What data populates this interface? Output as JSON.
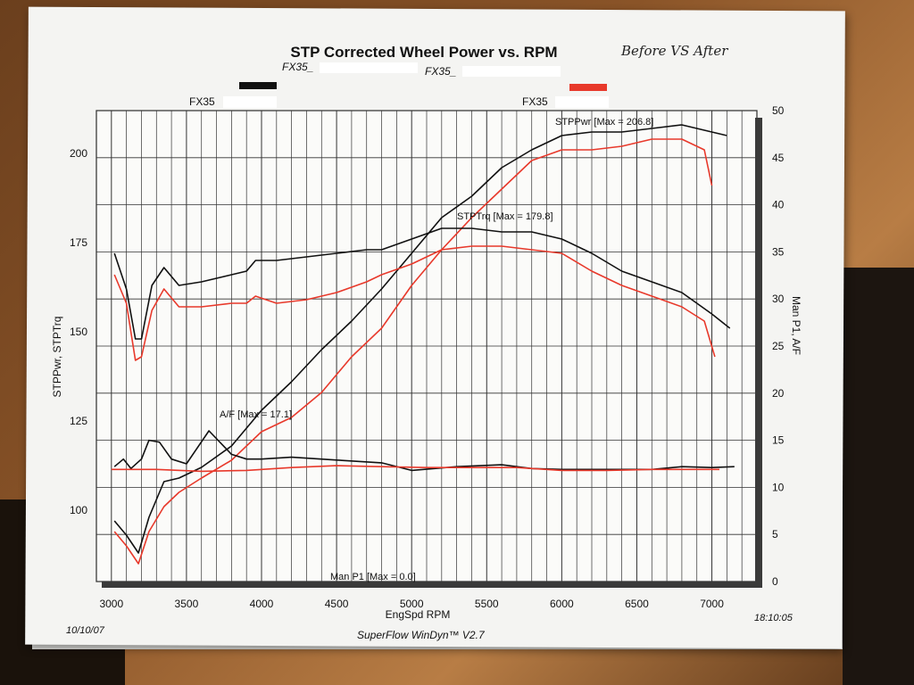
{
  "chart_data": {
    "type": "line",
    "title": "STP Corrected Wheel Power vs. RPM",
    "handwritten_note": "Before VS After",
    "legend": {
      "left_label": "FX35_",
      "right_label": "FX35_",
      "left_color": "#111111",
      "right_color": "#e8392b"
    },
    "run_labels": {
      "left": "FX35",
      "right": "FX35"
    },
    "xlabel": "EngSpd  RPM",
    "ylabel_left": "STPPwr, STPTrq",
    "ylabel_right": "Man P1, A/F",
    "xlim": [
      2900,
      7300
    ],
    "ylim_left": [
      80,
      212
    ],
    "ylim_right": [
      0,
      50
    ],
    "x_ticks": [
      "3000",
      "3500",
      "4000",
      "4500",
      "5000",
      "5500",
      "6000",
      "6500",
      "7000"
    ],
    "y_ticks_left": [
      "100",
      "125",
      "150",
      "175",
      "200"
    ],
    "y_ticks_right": [
      "0",
      "5",
      "10",
      "15",
      "20",
      "25",
      "30",
      "35",
      "40",
      "45",
      "50"
    ],
    "annotations": {
      "pwr": "STPPwr [Max = 206.8]",
      "trq": "STPTrq [Max = 179.8]",
      "af": "A/F   [Max = 17.1]",
      "manp": "Man P1 [Max = 0.0]"
    },
    "date": "10/10/07",
    "time": "18:10:05",
    "software": "SuperFlow WinDyn™ V2.7",
    "series": [
      {
        "name": "STPPwr",
        "color": "#111111",
        "axis": "left",
        "x": [
          3020,
          3100,
          3180,
          3250,
          3350,
          3450,
          3600,
          3800,
          4000,
          4200,
          4400,
          4600,
          4800,
          5000,
          5200,
          5400,
          5600,
          5800,
          6000,
          6200,
          6400,
          6600,
          6800,
          7000,
          7100
        ],
        "y": [
          97,
          93,
          88,
          98,
          108,
          109,
          112,
          118,
          128,
          136,
          145,
          153,
          162,
          172,
          182,
          188,
          196,
          201,
          205,
          206,
          206,
          207,
          208,
          206,
          205
        ]
      },
      {
        "name": "STPPwr",
        "color": "#e8392b",
        "axis": "left",
        "x": [
          3020,
          3100,
          3180,
          3250,
          3350,
          3450,
          3600,
          3800,
          4000,
          4200,
          4400,
          4600,
          4800,
          5000,
          5200,
          5400,
          5600,
          5800,
          6000,
          6200,
          6400,
          6600,
          6800,
          6950,
          7000
        ],
        "y": [
          94,
          90,
          85,
          94,
          101,
          105,
          109,
          114,
          122,
          126,
          133,
          143,
          151,
          163,
          173,
          182,
          190,
          198,
          201,
          201,
          202,
          204,
          204,
          201,
          191
        ]
      },
      {
        "name": "STPTrq",
        "color": "#111111",
        "axis": "left",
        "x": [
          3020,
          3100,
          3160,
          3200,
          3270,
          3350,
          3450,
          3600,
          3800,
          3900,
          3960,
          4100,
          4300,
          4500,
          4700,
          4800,
          5000,
          5200,
          5400,
          5600,
          5800,
          6000,
          6200,
          6400,
          6600,
          6800,
          7000,
          7120
        ],
        "y": [
          172,
          162,
          148,
          148,
          163,
          168,
          163,
          164,
          166,
          167,
          170,
          170,
          171,
          172,
          173,
          173,
          176,
          179,
          179,
          178,
          178,
          176,
          172,
          167,
          164,
          161,
          155,
          151
        ]
      },
      {
        "name": "STPTrq",
        "color": "#e8392b",
        "axis": "left",
        "x": [
          3020,
          3100,
          3160,
          3200,
          3270,
          3350,
          3450,
          3600,
          3800,
          3900,
          3960,
          4100,
          4300,
          4500,
          4700,
          4800,
          5000,
          5200,
          5400,
          5600,
          5800,
          6000,
          6200,
          6400,
          6600,
          6800,
          6950,
          7020
        ],
        "y": [
          166,
          158,
          142,
          143,
          156,
          162,
          157,
          157,
          158,
          158,
          160,
          158,
          159,
          161,
          164,
          166,
          169,
          173,
          174,
          174,
          173,
          172,
          167,
          163,
          160,
          157,
          153,
          143
        ]
      },
      {
        "name": "A/F",
        "color": "#111111",
        "axis": "right",
        "x": [
          3020,
          3080,
          3130,
          3200,
          3250,
          3320,
          3400,
          3500,
          3650,
          3800,
          3900,
          4000,
          4200,
          4500,
          4800,
          5000,
          5300,
          5600,
          5800,
          6000,
          6300,
          6600,
          6800,
          7000,
          7150
        ],
        "y": [
          12.2,
          13.0,
          12.0,
          13.0,
          15.0,
          14.8,
          13.0,
          12.5,
          16.0,
          13.5,
          13.0,
          13.0,
          13.2,
          12.9,
          12.6,
          11.8,
          12.2,
          12.4,
          12.0,
          11.9,
          11.9,
          11.9,
          12.2,
          12.1,
          12.2
        ]
      },
      {
        "name": "A/F",
        "color": "#e8392b",
        "axis": "right",
        "x": [
          3000,
          3300,
          3600,
          3900,
          4200,
          4500,
          4800,
          5100,
          5400,
          5700,
          6000,
          6300,
          6600,
          6900,
          7050
        ],
        "y": [
          11.9,
          11.9,
          11.7,
          11.8,
          12.1,
          12.3,
          12.2,
          12.1,
          12.1,
          12.1,
          11.8,
          11.8,
          11.9,
          11.9,
          11.9
        ]
      }
    ]
  }
}
